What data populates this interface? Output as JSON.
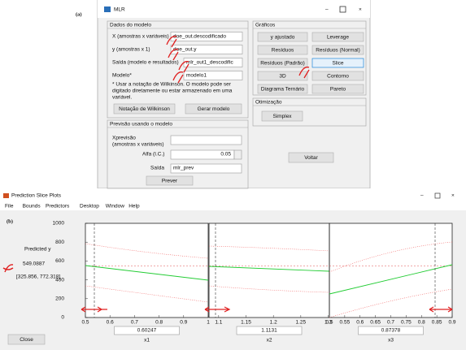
{
  "mlr_window": {
    "label": "(a)",
    "title": "MLR",
    "model_data": {
      "title": "Dados do modelo",
      "fields": [
        {
          "label": "X (amostras x variáveis)",
          "value": "doe_out.descodificado"
        },
        {
          "label": "y (amostras x 1)",
          "value": "doe_out.y"
        },
        {
          "label": "Saída (modelo e resultados)",
          "value": "mlr_out1_descodific"
        },
        {
          "label": "Modelo*",
          "value": "modelo1"
        }
      ],
      "note": [
        "* Usar a notação de Wilkinson. O modelo pode ser",
        "digitado diretamente ou estar armazenado em uma",
        "variável."
      ],
      "buttons": [
        "Notação de Wilkinson",
        "Gerar modelo"
      ]
    },
    "prediction": {
      "title": "Previsão usando o modelo",
      "xprev_label": [
        "Xprevisão",
        "(amostras x variáveis)"
      ],
      "alpha_label": "Alfa (I.C.)",
      "alpha_value": "0.05",
      "output_label": "Saída",
      "output_value": "mlr_prev",
      "button": "Prever"
    },
    "graphs": {
      "title": "Gráficos",
      "buttons": [
        "y ajustado",
        "Leverage",
        "Resíduos",
        "Resíduos (Normal)",
        "Resíduos (Padrão)",
        "Slice",
        "3D",
        "Contorno",
        "Diagrama Ternário",
        "Pareto"
      ]
    },
    "optimization": {
      "title": "Otimização",
      "button": "Simplex"
    },
    "back_button": "Voltar"
  },
  "slice_window": {
    "label": "(b)",
    "title": "Prediction Slice Plots",
    "menu": [
      "File",
      "Bounds",
      "Predictors",
      "Desktop",
      "Window",
      "Help"
    ],
    "predicted_label": "Predicted y",
    "predicted_value": "549.0887",
    "interval": "[325.856, 772.318]",
    "close_button": "Close",
    "yticks": [
      0,
      200,
      400,
      600,
      800,
      1000
    ],
    "plots": [
      {
        "xticks": [
          0.5,
          0.6,
          0.7,
          0.8,
          0.9,
          1
        ],
        "value": "0.60247",
        "name": "x1"
      },
      {
        "xticks": [
          1.1,
          1.15,
          1.2,
          1.25,
          1.3
        ],
        "value": "1.1131",
        "name": "x2"
      },
      {
        "xticks": [
          0.5,
          0.55,
          0.6,
          0.65,
          0.7,
          0.75,
          0.8,
          0.85,
          0.9
        ],
        "value": "0.87378",
        "name": "x3"
      }
    ]
  }
}
